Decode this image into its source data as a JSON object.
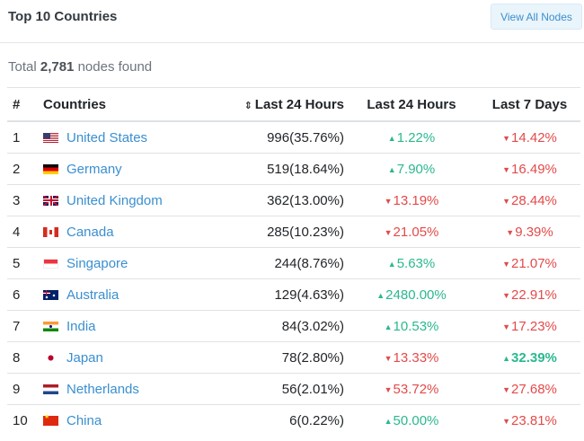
{
  "header": {
    "title": "Top 10 Countries",
    "view_all_label": "View All Nodes"
  },
  "summary": {
    "prefix": "Total",
    "count": "2,781",
    "suffix": "nodes found"
  },
  "table": {
    "columns": {
      "rank": "#",
      "country": "Countries",
      "count": "Last 24 Hours",
      "change_24h": "Last 24 Hours",
      "change_7d": "Last 7 Days"
    },
    "rows": [
      {
        "rank": "1",
        "flag": "us",
        "country": "United States",
        "count": "996(35.76%)",
        "d24": "1.22%",
        "d24_dir": "up",
        "d7": "14.42%",
        "d7_dir": "down"
      },
      {
        "rank": "2",
        "flag": "de",
        "country": "Germany",
        "count": "519(18.64%)",
        "d24": "7.90%",
        "d24_dir": "up",
        "d7": "16.49%",
        "d7_dir": "down"
      },
      {
        "rank": "3",
        "flag": "gb",
        "country": "United Kingdom",
        "count": "362(13.00%)",
        "d24": "13.19%",
        "d24_dir": "down",
        "d7": "28.44%",
        "d7_dir": "down"
      },
      {
        "rank": "4",
        "flag": "ca",
        "country": "Canada",
        "count": "285(10.23%)",
        "d24": "21.05%",
        "d24_dir": "down",
        "d7": "9.39%",
        "d7_dir": "down"
      },
      {
        "rank": "5",
        "flag": "sg",
        "country": "Singapore",
        "count": "244(8.76%)",
        "d24": "5.63%",
        "d24_dir": "up",
        "d7": "21.07%",
        "d7_dir": "down"
      },
      {
        "rank": "6",
        "flag": "au",
        "country": "Australia",
        "count": "129(4.63%)",
        "d24": "2480.00%",
        "d24_dir": "up",
        "d7": "22.91%",
        "d7_dir": "down"
      },
      {
        "rank": "7",
        "flag": "in",
        "country": "India",
        "count": "84(3.02%)",
        "d24": "10.53%",
        "d24_dir": "up",
        "d7": "17.23%",
        "d7_dir": "down"
      },
      {
        "rank": "8",
        "flag": "jp",
        "country": "Japan",
        "count": "78(2.80%)",
        "d24": "13.33%",
        "d24_dir": "down",
        "d7": "32.39%",
        "d7_dir": "up",
        "d7_bold": true
      },
      {
        "rank": "9",
        "flag": "nl",
        "country": "Netherlands",
        "count": "56(2.01%)",
        "d24": "53.72%",
        "d24_dir": "down",
        "d7": "27.68%",
        "d7_dir": "down"
      },
      {
        "rank": "10",
        "flag": "cn",
        "country": "China",
        "count": "6(0.22%)",
        "d24": "50.00%",
        "d24_dir": "up",
        "d7": "23.81%",
        "d7_dir": "down"
      }
    ]
  },
  "colors": {
    "link": "#3a8fd0",
    "up": "#2bb88f",
    "down": "#e34a4a"
  },
  "icons": {
    "up": "caret-up-icon",
    "down": "caret-down-icon",
    "sort": "sort-icon"
  }
}
